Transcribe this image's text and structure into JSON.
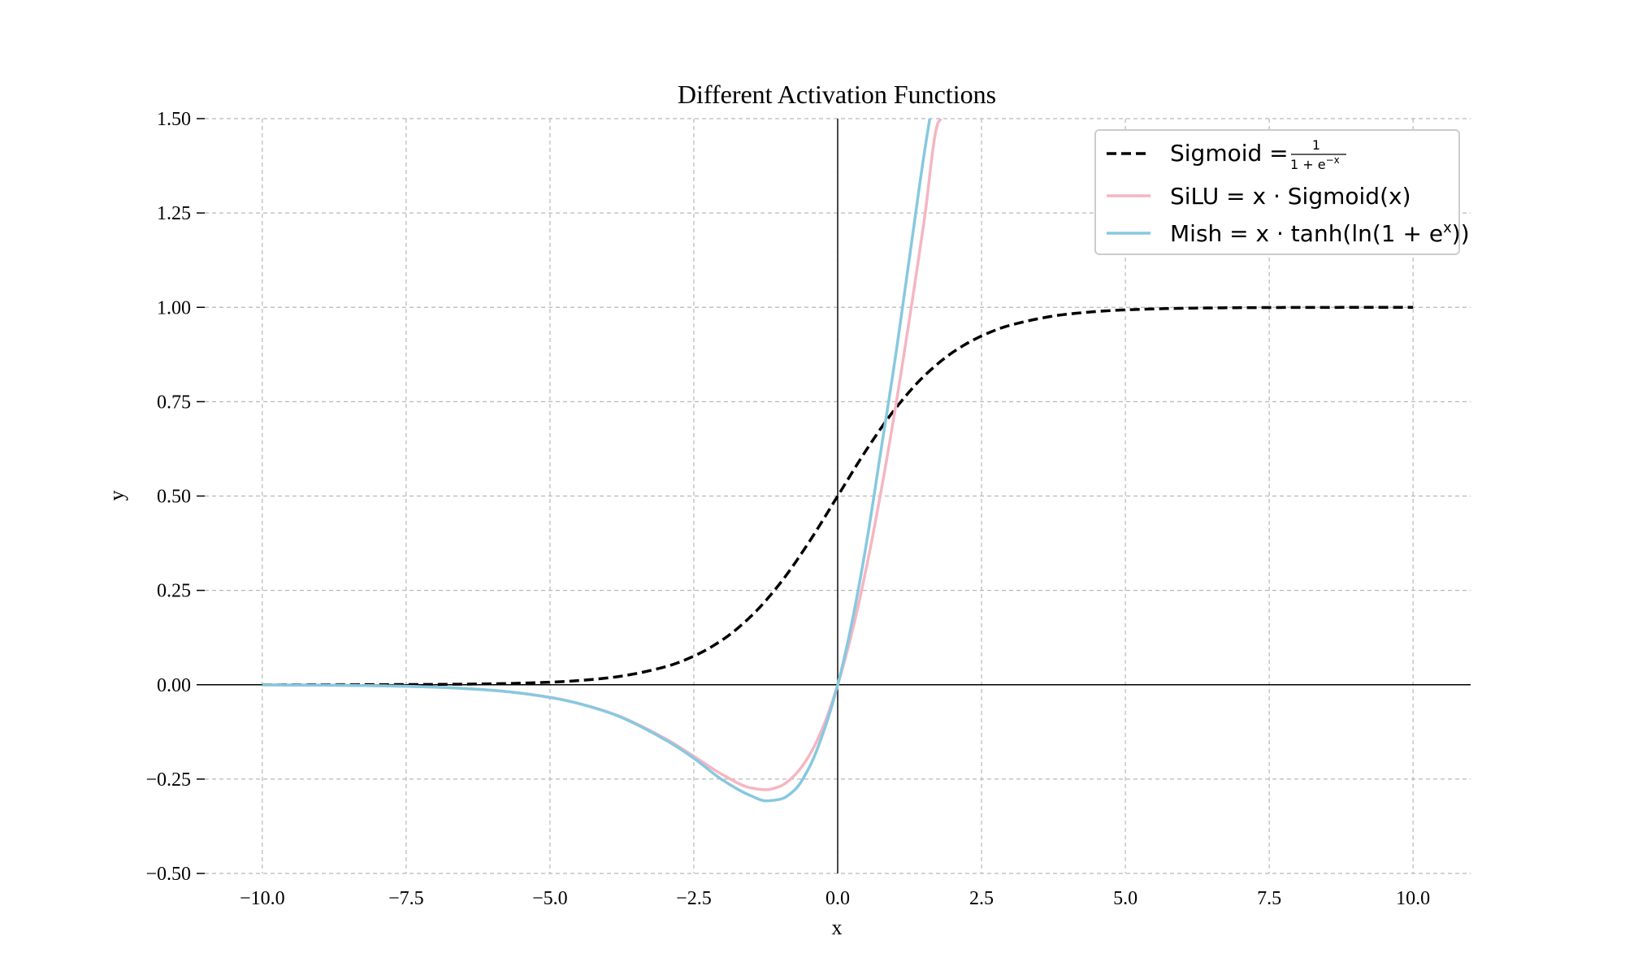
{
  "chart_data": {
    "type": "line",
    "title": "Different Activation Functions",
    "xlabel": "x",
    "ylabel": "y",
    "xlim": [
      -11,
      11
    ],
    "ylim": [
      -0.5,
      1.5
    ],
    "x_ticks": [
      -10.0,
      -7.5,
      -5.0,
      -2.5,
      0.0,
      2.5,
      5.0,
      7.5,
      10.0
    ],
    "x_tick_labels": [
      "−10.0",
      "−7.5",
      "−5.0",
      "−2.5",
      "0.0",
      "2.5",
      "5.0",
      "7.5",
      "10.0"
    ],
    "y_ticks": [
      -0.5,
      -0.25,
      0.0,
      0.25,
      0.5,
      0.75,
      1.0,
      1.25,
      1.5
    ],
    "y_tick_labels": [
      "−0.50",
      "−0.25",
      "0.00",
      "0.25",
      "0.50",
      "0.75",
      "1.00",
      "1.25",
      "1.50"
    ],
    "grid": true,
    "legend_position": "top-right",
    "series": [
      {
        "name": "Sigmoid = 1 / (1 + e^−x)",
        "style": "dashed",
        "color": "#000000",
        "x": [
          -10,
          -9,
          -8,
          -7,
          -6,
          -5,
          -4,
          -3,
          -2.5,
          -2,
          -1.5,
          -1,
          -0.5,
          0,
          0.5,
          1,
          1.5,
          2,
          2.5,
          3,
          4,
          5,
          6,
          7,
          8,
          9,
          10
        ],
        "y": [
          0.0,
          0.0001,
          0.0003,
          0.0009,
          0.0025,
          0.0067,
          0.018,
          0.0474,
          0.0759,
          0.1192,
          0.1824,
          0.2689,
          0.3775,
          0.5,
          0.6225,
          0.7311,
          0.8176,
          0.8808,
          0.9241,
          0.9526,
          0.982,
          0.9933,
          0.9975,
          0.9991,
          0.9997,
          0.9999,
          1.0
        ]
      },
      {
        "name": "SiLU = x · Sigmoid(x)",
        "style": "solid",
        "color": "#f4b6c2",
        "x": [
          -10,
          -9,
          -8,
          -7,
          -6,
          -5,
          -4,
          -3,
          -2.5,
          -2,
          -1.5,
          -1.25,
          -1,
          -0.75,
          -0.5,
          -0.25,
          0,
          0.25,
          0.5,
          0.75,
          1,
          1.25,
          1.5,
          1.75,
          1.8
        ],
        "y": [
          -0.0005,
          -0.0011,
          -0.0027,
          -0.0064,
          -0.0148,
          -0.0335,
          -0.0719,
          -0.1423,
          -0.1896,
          -0.2384,
          -0.2736,
          -0.2781,
          -0.2689,
          -0.24,
          -0.1888,
          -0.1101,
          0.0,
          0.1399,
          0.3112,
          0.51,
          0.7311,
          0.9719,
          1.2264,
          1.4911,
          1.5
        ]
      },
      {
        "name": "Mish = x · tanh(ln(1 + e^x))",
        "style": "solid",
        "color": "#87c8e0",
        "x": [
          -10,
          -9,
          -8,
          -7,
          -6,
          -5,
          -4,
          -3,
          -2.5,
          -2,
          -1.5,
          -1.25,
          -1,
          -0.75,
          -0.5,
          -0.25,
          0,
          0.25,
          0.5,
          0.75,
          1,
          1.25,
          1.5,
          1.6
        ],
        "y": [
          -0.0005,
          -0.0011,
          -0.0027,
          -0.0064,
          -0.0149,
          -0.0336,
          -0.0726,
          -0.1456,
          -0.1948,
          -0.2525,
          -0.2947,
          -0.3076,
          -0.3034,
          -0.2791,
          -0.2207,
          -0.1266,
          0.0,
          0.167,
          0.3752,
          0.6189,
          0.8651,
          1.1343,
          1.4035,
          1.5
        ]
      }
    ]
  },
  "legend": {
    "sigmoid_label": "Sigmoid =",
    "sigmoid_num": "1",
    "sigmoid_den": "1 + e",
    "sigmoid_den_sup": "−x",
    "silu_label": "SiLU = x · Sigmoid(x)",
    "mish_label": "Mish = x · tanh(ln(1 + e",
    "mish_sup": "x",
    "mish_close": "))"
  }
}
